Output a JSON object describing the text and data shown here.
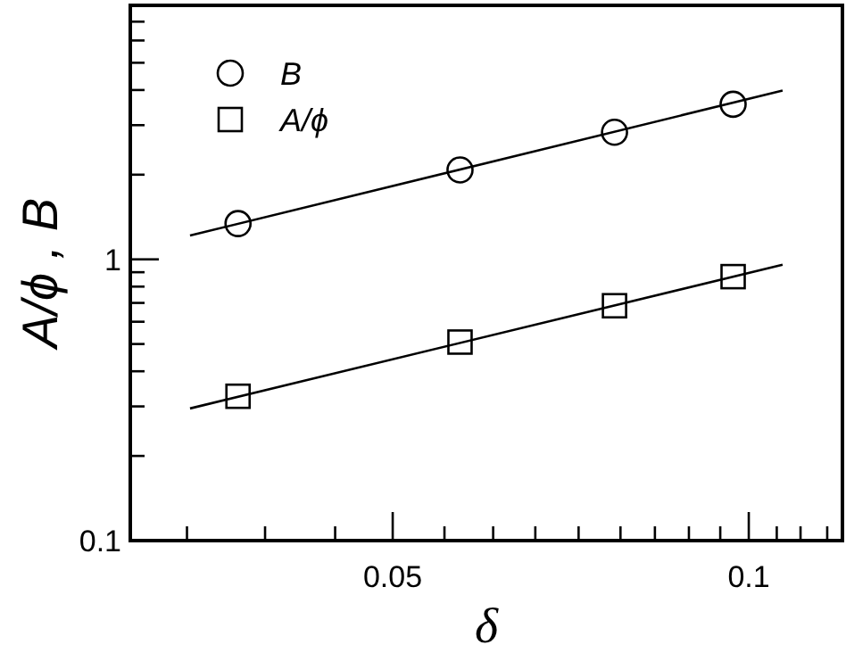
{
  "chart_data": {
    "type": "scatter",
    "xlabel": "δ",
    "ylabel": "A/ϕ , B",
    "log": "xy",
    "legend": "top left",
    "grid": false,
    "xlim": [
      0.03,
      0.12
    ],
    "ylim": [
      0.1,
      8
    ],
    "xticks": [
      {
        "value": 0.0335,
        "label": null
      },
      {
        "value": 0.039,
        "label": null
      },
      {
        "value": 0.0447,
        "label": null
      },
      0.05,
      {
        "value": 0.0553,
        "label": null
      },
      {
        "value": 0.0608,
        "label": null
      },
      {
        "value": 0.066,
        "label": null
      },
      {
        "value": 0.0718,
        "label": null
      },
      {
        "value": 0.0779,
        "label": null
      },
      {
        "value": 0.0833,
        "label": null
      },
      {
        "value": 0.089,
        "label": null
      },
      {
        "value": 0.0946,
        "label": null
      },
      0.1,
      {
        "value": 0.1056,
        "label": null
      },
      {
        "value": 0.1106,
        "label": null
      },
      {
        "value": 0.1165,
        "label": null
      }
    ],
    "yticks": [
      0.1,
      {
        "value": 0.2,
        "label": null
      },
      {
        "value": 0.3,
        "label": null
      },
      {
        "value": 0.4,
        "label": null
      },
      {
        "value": 0.5,
        "label": null
      },
      {
        "value": 0.6,
        "label": null
      },
      {
        "value": 0.7,
        "label": null
      },
      {
        "value": 0.8,
        "label": null
      },
      {
        "value": 0.9,
        "label": null
      },
      1,
      {
        "value": 2,
        "label": null
      },
      {
        "value": 3,
        "label": null
      },
      {
        "value": 4,
        "label": null
      },
      {
        "value": 5,
        "label": null
      },
      {
        "value": 6,
        "label": null
      },
      {
        "value": 7,
        "label": null
      }
    ],
    "series": [
      {
        "name": "B",
        "marker": "circle",
        "color": "#000000",
        "x": [
          0.037,
          0.057,
          0.077,
          0.097
        ],
        "values": [
          1.34,
          2.08,
          2.83,
          3.56
        ]
      },
      {
        "name": "A/ϕ",
        "marker": "square",
        "color": "#000000",
        "x": [
          0.037,
          0.057,
          0.077,
          0.097
        ],
        "values": [
          0.326,
          0.508,
          0.684,
          0.868
        ]
      },
      {
        "type": "line",
        "color": "#000000",
        "line_style": "solid",
        "x": [
          0.0337,
          0.1068
        ],
        "values": [
          1.215,
          3.98
        ]
      },
      {
        "type": "line",
        "color": "#000000",
        "line_style": "solid",
        "x": [
          0.0337,
          0.1068
        ],
        "values": [
          0.295,
          0.957
        ]
      }
    ]
  }
}
